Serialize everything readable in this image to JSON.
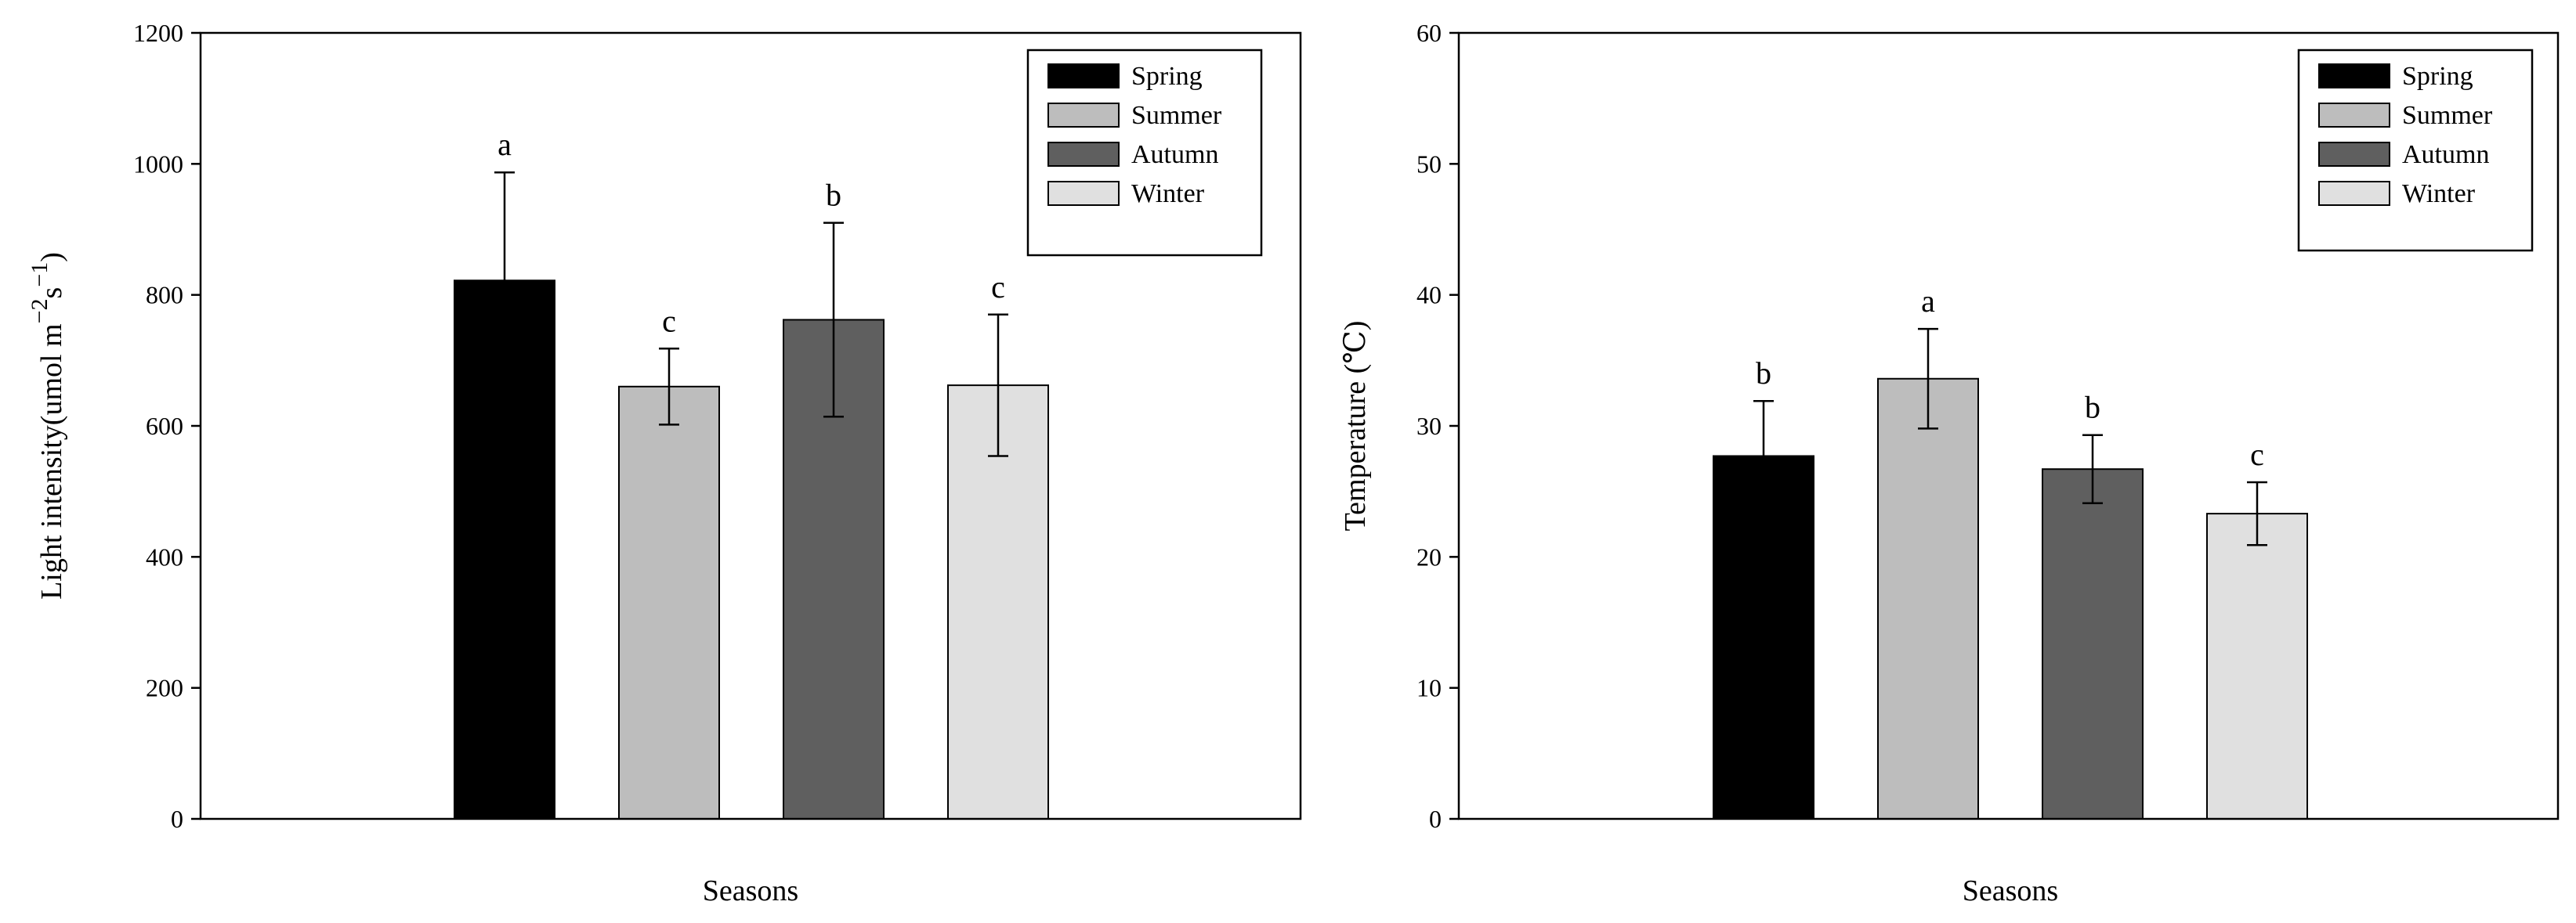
{
  "chart_data": [
    {
      "type": "bar",
      "title": "",
      "xlabel": "Seasons",
      "ylabel_main": "Light intensity(umol m",
      "ylabel_sup1": "−2",
      "ylabel_mid": "s",
      "ylabel_sup2": "−1",
      "ylabel_end": ")",
      "ylim": [
        0,
        1200
      ],
      "yticks": [
        0,
        200,
        400,
        600,
        800,
        1000,
        1200
      ],
      "ytick_labels": [
        "0",
        "200",
        "400",
        "600",
        "800",
        "1000",
        "1200"
      ],
      "categories": [
        "Spring",
        "Summer",
        "Autumn",
        "Winter"
      ],
      "values": [
        822,
        660,
        762,
        662
      ],
      "errors": [
        165,
        58,
        148,
        108
      ],
      "significance": [
        "a",
        "c",
        "b",
        "c"
      ],
      "colors": [
        "#000000",
        "#bdbdbd",
        "#5f5f5f",
        "#e0e0e0"
      ],
      "legend": [
        "Spring",
        "Summer",
        "Autumn",
        "Winter"
      ],
      "legend_position": "top-right"
    },
    {
      "type": "bar",
      "title": "",
      "xlabel": "Seasons",
      "ylabel": "Temperature (℃)",
      "ylim": [
        0,
        60
      ],
      "yticks": [
        0,
        10,
        20,
        30,
        40,
        50,
        60
      ],
      "ytick_labels": [
        "0",
        "10",
        "20",
        "30",
        "40",
        "50",
        "60"
      ],
      "categories": [
        "Spring",
        "Summer",
        "Autumn",
        "Winter"
      ],
      "values": [
        27.7,
        33.6,
        26.7,
        23.3
      ],
      "errors": [
        4.2,
        3.8,
        2.6,
        2.4
      ],
      "significance": [
        "b",
        "a",
        "b",
        "c"
      ],
      "colors": [
        "#000000",
        "#bdbdbd",
        "#5f5f5f",
        "#e0e0e0"
      ],
      "legend": [
        "Spring",
        "Summer",
        "Autumn",
        "Winter"
      ],
      "legend_position": "top-right"
    }
  ]
}
